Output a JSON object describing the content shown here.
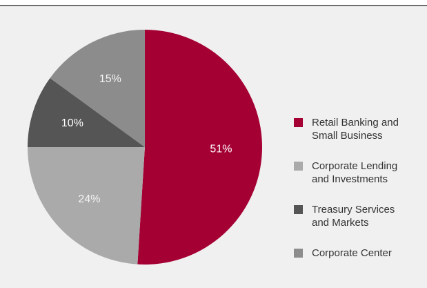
{
  "chart_data": {
    "type": "pie",
    "categories": [
      "Retail Banking and\nSmall Business",
      "Corporate Lending\nand Investments",
      "Treasury Services\nand Markets",
      "Corporate Center"
    ],
    "values": [
      51,
      24,
      10,
      15
    ],
    "value_labels": [
      "51%",
      "24%",
      "10%",
      "15%"
    ],
    "colors": [
      "#a50034",
      "#aaaaaa",
      "#555555",
      "#8c8c8c"
    ],
    "legend": "right"
  }
}
